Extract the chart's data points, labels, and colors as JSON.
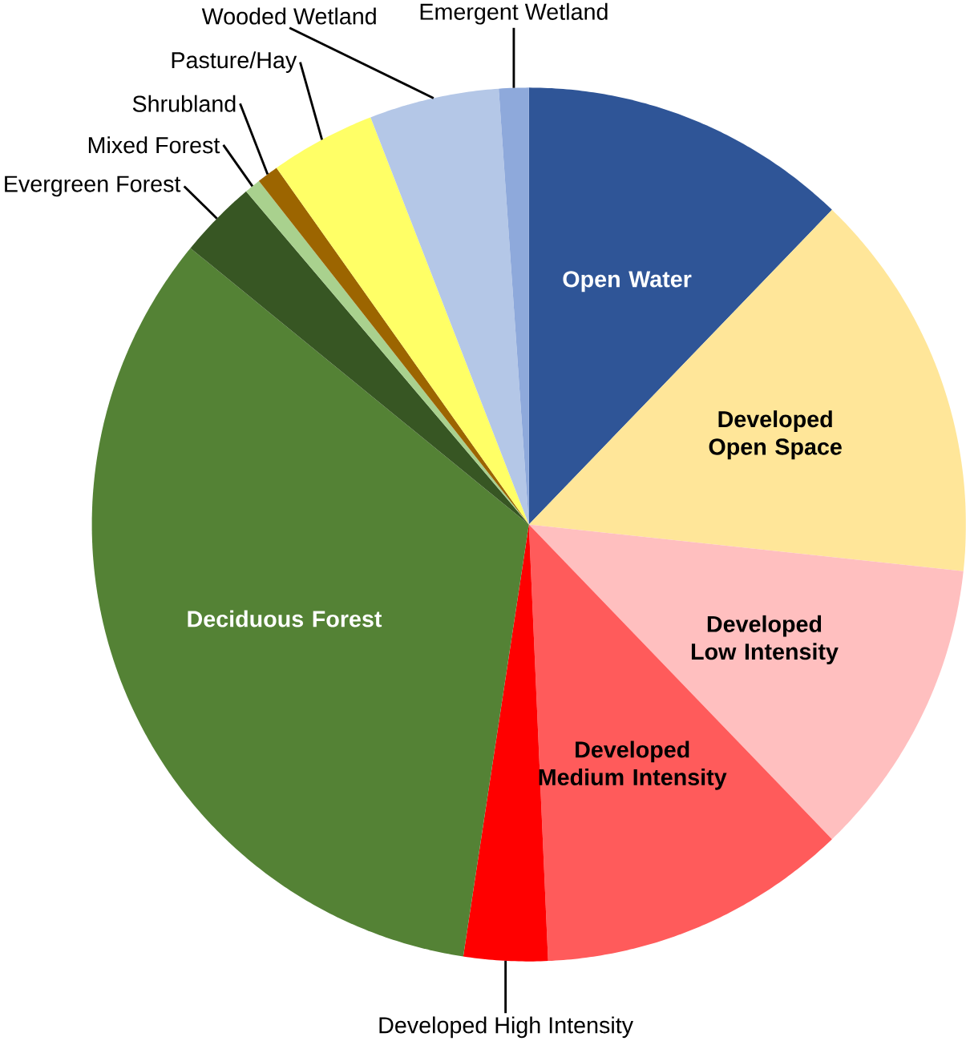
{
  "chart_data": {
    "type": "pie",
    "categories": [
      "Open Water",
      "Developed Open Space",
      "Developed Low Intensity",
      "Developed Medium Intensity",
      "Developed High Intensity",
      "Deciduous Forest",
      "Evergreen Forest",
      "Mixed Forest",
      "Shrubland",
      "Pasture/Hay",
      "Wooded Wetland",
      "Emergent Wetland"
    ],
    "values": [
      12.2,
      14.5,
      11.1,
      11.5,
      3.1,
      33.5,
      2.9,
      0.6,
      0.8,
      3.9,
      4.8,
      1.1
    ],
    "colors": [
      "#2f5597",
      "#ffe699",
      "#ffbfbf",
      "#ff5b5b",
      "#ff0000",
      "#548235",
      "#375623",
      "#a9d18e",
      "#9c6500",
      "#ffff66",
      "#b4c7e7",
      "#8ea9db"
    ]
  }
}
